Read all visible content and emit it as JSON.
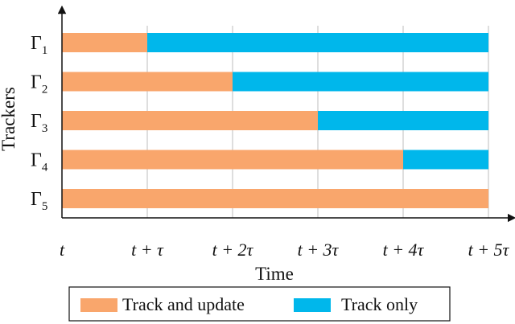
{
  "chart_data": {
    "type": "bar",
    "orientation": "horizontal",
    "stacked": true,
    "xlabel": "Time",
    "ylabel": "Trackers",
    "x_ticks": [
      "t",
      "t + τ",
      "t + 2τ",
      "t + 3τ",
      "t + 4τ",
      "t + 5τ"
    ],
    "xlim": [
      0,
      5
    ],
    "x_unit": "τ",
    "grid": "vertical",
    "legend_position": "bottom",
    "categories": [
      {
        "base": "Γ",
        "sub": "1"
      },
      {
        "base": "Γ",
        "sub": "2"
      },
      {
        "base": "Γ",
        "sub": "3"
      },
      {
        "base": "Γ",
        "sub": "4"
      },
      {
        "base": "Γ",
        "sub": "5"
      }
    ],
    "series": [
      {
        "name": "Track and update",
        "color": "#F9A66C",
        "values": [
          1,
          2,
          3,
          4,
          5
        ]
      },
      {
        "name": "Track only",
        "color": "#00B7EB",
        "values": [
          4,
          3,
          2,
          1,
          0
        ]
      }
    ]
  }
}
